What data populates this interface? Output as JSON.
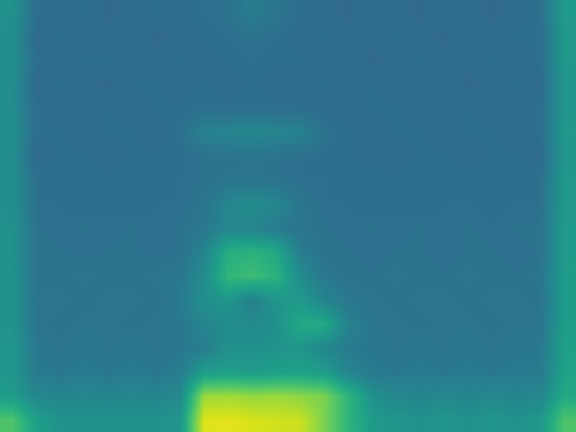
{
  "chart_data": {
    "type": "heatmap",
    "color": "Viridis",
    "zlim": [
      0,
      1
    ],
    "tick_labels": false,
    "cells": [
      [
        0.5,
        0.36,
        0.35,
        0.36,
        0.34,
        0.35,
        0.36,
        0.35,
        0.37,
        0.38,
        0.42,
        0.39,
        0.36,
        0.35,
        0.34,
        0.36,
        0.35,
        0.34,
        0.36,
        0.35,
        0.34,
        0.35,
        0.37,
        0.54
      ],
      [
        0.49,
        0.35,
        0.36,
        0.35,
        0.35,
        0.36,
        0.34,
        0.35,
        0.36,
        0.37,
        0.38,
        0.37,
        0.35,
        0.36,
        0.35,
        0.35,
        0.36,
        0.35,
        0.34,
        0.36,
        0.35,
        0.36,
        0.36,
        0.53
      ],
      [
        0.49,
        0.36,
        0.35,
        0.36,
        0.36,
        0.35,
        0.35,
        0.36,
        0.35,
        0.36,
        0.37,
        0.36,
        0.36,
        0.35,
        0.36,
        0.34,
        0.35,
        0.36,
        0.35,
        0.35,
        0.36,
        0.35,
        0.36,
        0.53
      ],
      [
        0.48,
        0.35,
        0.36,
        0.35,
        0.34,
        0.36,
        0.36,
        0.35,
        0.36,
        0.35,
        0.36,
        0.35,
        0.35,
        0.36,
        0.35,
        0.36,
        0.35,
        0.35,
        0.36,
        0.34,
        0.35,
        0.36,
        0.35,
        0.52
      ],
      [
        0.48,
        0.36,
        0.35,
        0.35,
        0.36,
        0.35,
        0.36,
        0.36,
        0.37,
        0.36,
        0.37,
        0.36,
        0.36,
        0.35,
        0.35,
        0.36,
        0.36,
        0.35,
        0.35,
        0.36,
        0.35,
        0.35,
        0.36,
        0.52
      ],
      [
        0.49,
        0.36,
        0.36,
        0.35,
        0.36,
        0.36,
        0.35,
        0.37,
        0.44,
        0.45,
        0.46,
        0.45,
        0.44,
        0.38,
        0.36,
        0.35,
        0.36,
        0.36,
        0.35,
        0.36,
        0.36,
        0.35,
        0.36,
        0.53
      ],
      [
        0.48,
        0.35,
        0.36,
        0.36,
        0.35,
        0.36,
        0.36,
        0.36,
        0.38,
        0.38,
        0.39,
        0.38,
        0.37,
        0.36,
        0.36,
        0.35,
        0.35,
        0.36,
        0.36,
        0.35,
        0.36,
        0.36,
        0.35,
        0.52
      ],
      [
        0.49,
        0.37,
        0.36,
        0.37,
        0.36,
        0.37,
        0.36,
        0.37,
        0.38,
        0.39,
        0.39,
        0.38,
        0.37,
        0.37,
        0.36,
        0.37,
        0.36,
        0.37,
        0.36,
        0.37,
        0.36,
        0.37,
        0.37,
        0.53
      ],
      [
        0.49,
        0.37,
        0.37,
        0.36,
        0.37,
        0.36,
        0.37,
        0.37,
        0.39,
        0.46,
        0.48,
        0.46,
        0.39,
        0.37,
        0.37,
        0.36,
        0.37,
        0.36,
        0.37,
        0.37,
        0.36,
        0.37,
        0.37,
        0.53
      ],
      [
        0.5,
        0.38,
        0.37,
        0.38,
        0.37,
        0.38,
        0.37,
        0.38,
        0.4,
        0.46,
        0.45,
        0.41,
        0.39,
        0.38,
        0.37,
        0.38,
        0.37,
        0.38,
        0.37,
        0.38,
        0.37,
        0.38,
        0.38,
        0.54
      ],
      [
        0.5,
        0.38,
        0.38,
        0.37,
        0.38,
        0.38,
        0.37,
        0.38,
        0.45,
        0.62,
        0.64,
        0.6,
        0.42,
        0.38,
        0.38,
        0.37,
        0.38,
        0.38,
        0.37,
        0.38,
        0.38,
        0.37,
        0.38,
        0.54
      ],
      [
        0.51,
        0.38,
        0.38,
        0.39,
        0.38,
        0.38,
        0.39,
        0.4,
        0.48,
        0.66,
        0.68,
        0.64,
        0.48,
        0.4,
        0.38,
        0.38,
        0.39,
        0.38,
        0.38,
        0.39,
        0.38,
        0.38,
        0.39,
        0.55
      ],
      [
        0.51,
        0.39,
        0.39,
        0.38,
        0.39,
        0.39,
        0.38,
        0.41,
        0.5,
        0.52,
        0.43,
        0.52,
        0.54,
        0.45,
        0.4,
        0.39,
        0.38,
        0.39,
        0.39,
        0.38,
        0.39,
        0.39,
        0.38,
        0.55
      ],
      [
        0.51,
        0.39,
        0.38,
        0.39,
        0.39,
        0.38,
        0.39,
        0.4,
        0.45,
        0.48,
        0.47,
        0.5,
        0.6,
        0.6,
        0.44,
        0.39,
        0.39,
        0.38,
        0.39,
        0.39,
        0.38,
        0.39,
        0.39,
        0.55
      ],
      [
        0.52,
        0.4,
        0.39,
        0.4,
        0.39,
        0.4,
        0.39,
        0.4,
        0.42,
        0.5,
        0.5,
        0.51,
        0.52,
        0.46,
        0.41,
        0.4,
        0.39,
        0.4,
        0.39,
        0.4,
        0.39,
        0.4,
        0.4,
        0.56
      ],
      [
        0.52,
        0.41,
        0.4,
        0.41,
        0.4,
        0.41,
        0.4,
        0.42,
        0.55,
        0.56,
        0.55,
        0.56,
        0.57,
        0.55,
        0.45,
        0.41,
        0.4,
        0.41,
        0.4,
        0.41,
        0.4,
        0.41,
        0.41,
        0.57
      ],
      [
        0.55,
        0.46,
        0.45,
        0.46,
        0.45,
        0.46,
        0.45,
        0.47,
        0.85,
        0.86,
        0.84,
        0.85,
        0.83,
        0.8,
        0.65,
        0.5,
        0.46,
        0.45,
        0.46,
        0.45,
        0.46,
        0.45,
        0.46,
        0.6
      ],
      [
        0.72,
        0.56,
        0.51,
        0.5,
        0.51,
        0.5,
        0.51,
        0.52,
        0.95,
        0.96,
        0.94,
        0.93,
        0.92,
        0.8,
        0.65,
        0.54,
        0.52,
        0.51,
        0.52,
        0.51,
        0.52,
        0.51,
        0.53,
        0.72
      ]
    ]
  }
}
